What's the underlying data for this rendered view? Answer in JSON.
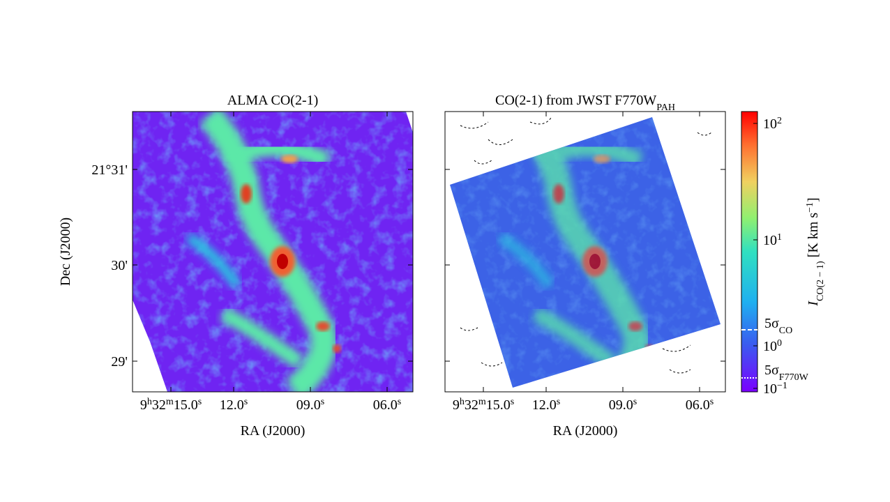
{
  "panels": [
    {
      "title": {
        "text": "ALMA CO(2-1)"
      },
      "xlabel": "RA (J2000)"
    },
    {
      "title": {
        "text": "CO(2-1) from JWST F770W",
        "sub": "PAH"
      },
      "xlabel": "RA (J2000)"
    }
  ],
  "ylabel": "Dec (J2000)",
  "ra_ticks": [
    [
      [
        "9",
        "h"
      ],
      [
        "32",
        "m"
      ],
      [
        "15.0",
        "s"
      ]
    ],
    [
      [
        "12.0",
        "s"
      ]
    ],
    [
      [
        "09.0",
        "s"
      ]
    ],
    [
      [
        "06.0",
        "s"
      ]
    ]
  ],
  "dec_ticks": [
    "21°31'",
    "30'",
    "29'"
  ],
  "colorbar": {
    "ticks": [
      {
        "base": "10",
        "exp": "2"
      },
      {
        "base": "10",
        "exp": "1"
      },
      {
        "base": "10",
        "exp": "0"
      },
      {
        "base": "10",
        "exp": "−1"
      }
    ],
    "thresholds": [
      {
        "text": "5σ",
        "sub": "CO"
      },
      {
        "text": "5σ",
        "sub": "F770W"
      }
    ],
    "label": {
      "main": "I",
      "sub": "CO(2 − 1)",
      "unit": " [K km s",
      "sup": "−1",
      "end": "]"
    }
  }
}
